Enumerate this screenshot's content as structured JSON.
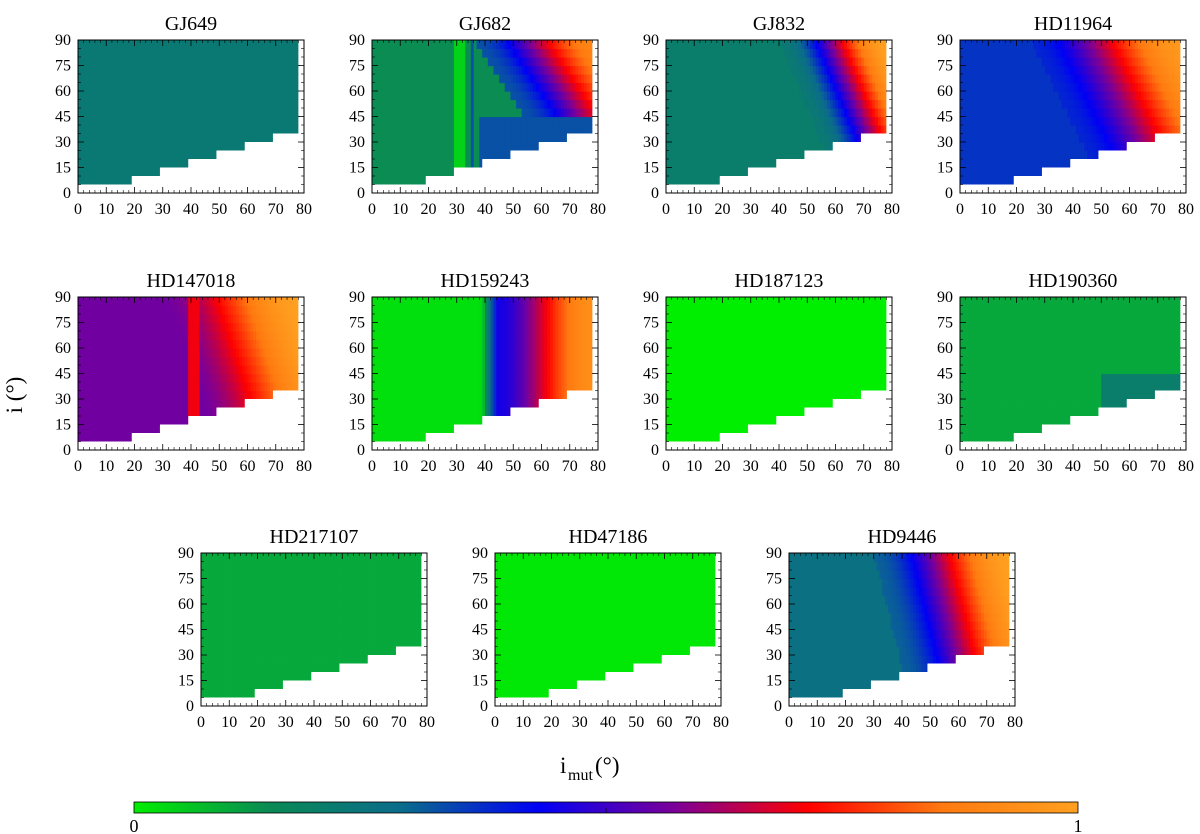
{
  "chart_data": {
    "type": "heatmap",
    "shared_axes": {
      "xlabel_main": "i",
      "xlabel_sub": "mut",
      "xlabel_unit": "(°)",
      "ylabel": "i (°)",
      "x_range": [
        0,
        80
      ],
      "y_range": [
        0,
        90
      ],
      "x_ticks": [
        "0",
        "10",
        "20",
        "30",
        "40",
        "50",
        "60",
        "70",
        "80"
      ],
      "y_ticks": [
        "0",
        "15",
        "30",
        "45",
        "60",
        "75",
        "90"
      ]
    },
    "colorbar": {
      "min_label": "0",
      "max_label": "1",
      "stops": [
        "#00ee00",
        "#0a8a55",
        "#0b6b8c",
        "#0000f5",
        "#7a0099",
        "#ff0000",
        "#ff7a10",
        "#ffa020"
      ]
    },
    "masked_region": "white staircase below the line i = i_mut / 2",
    "panels": [
      {
        "title": "GJ649",
        "base": 0.22,
        "features": []
      },
      {
        "title": "GJ682",
        "base": 0.14,
        "features": [
          {
            "kind": "stripe",
            "at": 31,
            "halfwidth": 1.5,
            "value": 0.04
          },
          {
            "kind": "edge",
            "at": 35,
            "width": 1.5,
            "value": 0.32
          },
          {
            "kind": "ramp",
            "from": 36,
            "to": 78,
            "start": 0.32,
            "end": 0.9,
            "y_scale": 0.4
          },
          {
            "kind": "low_band",
            "from": 38,
            "to": 80,
            "y_max": 45,
            "value": 0.32
          }
        ]
      },
      {
        "title": "GJ832",
        "base": 0.2,
        "features": [
          {
            "kind": "ramp",
            "from": 40,
            "to": 78,
            "start": 0.22,
            "end": 1.0,
            "y_scale": 0.25
          }
        ]
      },
      {
        "title": "HD11964",
        "base": 0.36,
        "features": [
          {
            "kind": "ramp",
            "from": 25,
            "to": 78,
            "start": 0.38,
            "end": 0.97,
            "y_scale": 0.3
          }
        ]
      },
      {
        "title": "HD147018",
        "base": 0.56,
        "features": [
          {
            "kind": "ramp",
            "from": 30,
            "to": 78,
            "start": 0.56,
            "end": 1.0,
            "y_scale": 0.2
          },
          {
            "kind": "stripe",
            "at": 41,
            "halfwidth": 1.5,
            "value": 0.7
          }
        ]
      },
      {
        "title": "HD159243",
        "base": 0.02,
        "features": [
          {
            "kind": "ramp",
            "from": 38,
            "to": 44,
            "start": 0.02,
            "end": 0.38,
            "y_scale": 0
          },
          {
            "kind": "ramp",
            "from": 44,
            "to": 78,
            "start": 0.45,
            "end": 0.93,
            "y_scale": 0
          }
        ]
      },
      {
        "title": "HD187123",
        "base": 0.0,
        "features": []
      },
      {
        "title": "HD190360",
        "base": 0.1,
        "features": [
          {
            "kind": "low_band",
            "from": 50,
            "to": 80,
            "y_max": 45,
            "value": 0.2
          }
        ]
      },
      {
        "title": "HD217107",
        "base": 0.1,
        "features": []
      },
      {
        "title": "HD47186",
        "base": 0.01,
        "features": []
      },
      {
        "title": "HD9446",
        "base": 0.26,
        "features": [
          {
            "kind": "ramp",
            "from": 30,
            "to": 78,
            "start": 0.3,
            "end": 1.0,
            "y_scale": 0.15
          }
        ]
      }
    ]
  }
}
